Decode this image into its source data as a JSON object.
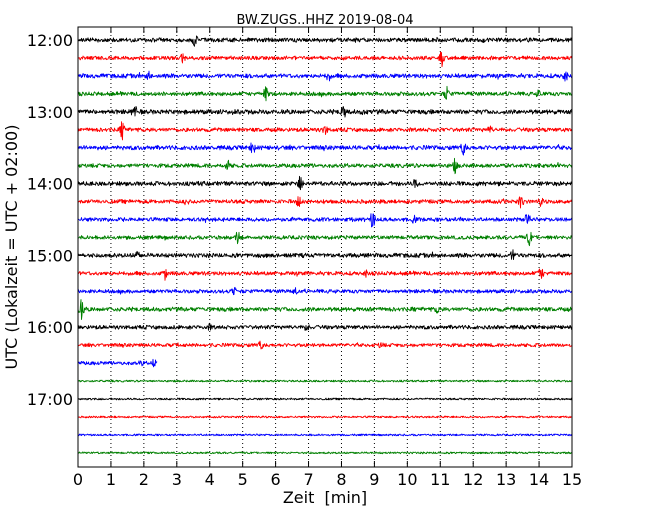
{
  "chart_data": {
    "type": "line",
    "title": "BW.ZUGS..HHZ 2019-08-04",
    "xlabel": "Zeit  [min]",
    "ylabel": "UTC (Lokalzeit = UTC + 02:00)",
    "xlim": [
      0,
      15
    ],
    "x_ticks": [
      0,
      1,
      2,
      3,
      4,
      5,
      6,
      7,
      8,
      9,
      10,
      11,
      12,
      13,
      14,
      15
    ],
    "x_tick_labels": [
      "0",
      "1",
      "2",
      "3",
      "4",
      "5",
      "6",
      "7",
      "8",
      "9",
      "10",
      "11",
      "12",
      "13",
      "14",
      "15"
    ],
    "y_tick_labels": [
      "12:00",
      "13:00",
      "14:00",
      "15:00",
      "16:00",
      "17:00"
    ],
    "y_tick_row_index": [
      0,
      4,
      8,
      12,
      16,
      20
    ],
    "grid": "vertical-dotted",
    "row_colors": [
      "#000000",
      "#ff0000",
      "#0000ff",
      "#008000"
    ],
    "traces": [
      {
        "start": "12:00",
        "color": "#000000",
        "end_min": 15,
        "activity": 0.55,
        "events": [
          {
            "t": 3.55,
            "amp": 0.9
          }
        ]
      },
      {
        "start": "12:15",
        "color": "#ff0000",
        "end_min": 15,
        "activity": 0.45,
        "events": [
          {
            "t": 3.2,
            "amp": 0.8
          },
          {
            "t": 11.05,
            "amp": 1.0
          }
        ]
      },
      {
        "start": "12:30",
        "color": "#0000ff",
        "end_min": 15,
        "activity": 0.6,
        "events": [
          {
            "t": 2.15,
            "amp": 0.5
          },
          {
            "t": 7.6,
            "amp": 0.6
          },
          {
            "t": 14.8,
            "amp": 0.7
          }
        ]
      },
      {
        "start": "12:45",
        "color": "#008000",
        "end_min": 15,
        "activity": 0.5,
        "events": [
          {
            "t": 5.7,
            "amp": 1.0
          },
          {
            "t": 11.2,
            "amp": 0.9
          },
          {
            "t": 14.0,
            "amp": 0.5
          }
        ]
      },
      {
        "start": "13:00",
        "color": "#000000",
        "end_min": 15,
        "activity": 0.65,
        "events": [
          {
            "t": 1.7,
            "amp": 1.0
          },
          {
            "t": 8.05,
            "amp": 1.0
          },
          {
            "t": 8.7,
            "amp": 0.4
          }
        ]
      },
      {
        "start": "13:15",
        "color": "#ff0000",
        "end_min": 15,
        "activity": 0.5,
        "events": [
          {
            "t": 1.35,
            "amp": 1.2
          },
          {
            "t": 7.5,
            "amp": 0.6
          },
          {
            "t": 12.5,
            "amp": 0.4
          }
        ]
      },
      {
        "start": "13:30",
        "color": "#0000ff",
        "end_min": 15,
        "activity": 0.6,
        "events": [
          {
            "t": 5.3,
            "amp": 0.8
          },
          {
            "t": 11.7,
            "amp": 1.0
          }
        ]
      },
      {
        "start": "13:45",
        "color": "#008000",
        "end_min": 15,
        "activity": 0.5,
        "events": [
          {
            "t": 4.55,
            "amp": 0.7
          },
          {
            "t": 11.45,
            "amp": 0.9
          }
        ]
      },
      {
        "start": "14:00",
        "color": "#000000",
        "end_min": 15,
        "activity": 0.6,
        "events": [
          {
            "t": 6.75,
            "amp": 1.1
          },
          {
            "t": 10.25,
            "amp": 0.6
          }
        ]
      },
      {
        "start": "14:15",
        "color": "#ff0000",
        "end_min": 15,
        "activity": 0.5,
        "events": [
          {
            "t": 3.3,
            "amp": 0.4
          },
          {
            "t": 6.7,
            "amp": 0.7
          },
          {
            "t": 13.45,
            "amp": 0.8
          },
          {
            "t": 14.05,
            "amp": 0.5
          }
        ]
      },
      {
        "start": "14:30",
        "color": "#0000ff",
        "end_min": 15,
        "activity": 0.5,
        "events": [
          {
            "t": 8.95,
            "amp": 1.2
          },
          {
            "t": 10.2,
            "amp": 0.4
          },
          {
            "t": 13.65,
            "amp": 0.9
          }
        ]
      },
      {
        "start": "14:45",
        "color": "#008000",
        "end_min": 15,
        "activity": 0.45,
        "events": [
          {
            "t": 4.85,
            "amp": 0.8
          },
          {
            "t": 13.7,
            "amp": 1.0
          }
        ]
      },
      {
        "start": "15:00",
        "color": "#000000",
        "end_min": 15,
        "activity": 0.6,
        "events": [
          {
            "t": 1.8,
            "amp": 0.5
          },
          {
            "t": 13.2,
            "amp": 0.6
          }
        ]
      },
      {
        "start": "15:15",
        "color": "#ff0000",
        "end_min": 15,
        "activity": 0.5,
        "events": [
          {
            "t": 2.65,
            "amp": 0.8
          },
          {
            "t": 8.75,
            "amp": 0.4
          },
          {
            "t": 14.05,
            "amp": 1.0
          }
        ]
      },
      {
        "start": "15:30",
        "color": "#0000ff",
        "end_min": 15,
        "activity": 0.45,
        "events": [
          {
            "t": 4.75,
            "amp": 0.6
          },
          {
            "t": 6.6,
            "amp": 0.4
          }
        ]
      },
      {
        "start": "15:45",
        "color": "#008000",
        "end_min": 15,
        "activity": 0.55,
        "events": [
          {
            "t": 0.1,
            "amp": 1.3
          },
          {
            "t": 10.9,
            "amp": 0.4
          }
        ]
      },
      {
        "start": "16:00",
        "color": "#000000",
        "end_min": 15,
        "activity": 0.5,
        "events": [
          {
            "t": 6.95,
            "amp": 0.5
          },
          {
            "t": 4.0,
            "amp": 0.3
          }
        ]
      },
      {
        "start": "16:15",
        "color": "#ff0000",
        "end_min": 15,
        "activity": 0.4,
        "events": [
          {
            "t": 5.55,
            "amp": 0.6
          },
          {
            "t": 9.2,
            "amp": 0.3
          }
        ]
      },
      {
        "start": "16:30",
        "color": "#0000ff",
        "end_min": 2.4,
        "activity": 0.4,
        "events": [
          {
            "t": 2.3,
            "amp": 0.5
          },
          {
            "t": 1.9,
            "amp": 0.3
          }
        ]
      },
      {
        "start": "16:45",
        "color": "#008000",
        "end_min": 15,
        "activity": 0,
        "events": []
      },
      {
        "start": "17:00",
        "color": "#000000",
        "end_min": 15,
        "activity": 0,
        "events": []
      },
      {
        "start": "17:15",
        "color": "#ff0000",
        "end_min": 15,
        "activity": 0,
        "events": []
      },
      {
        "start": "17:30",
        "color": "#0000ff",
        "end_min": 15,
        "activity": 0,
        "events": []
      },
      {
        "start": "17:45",
        "color": "#008000",
        "end_min": 15,
        "activity": 0,
        "events": []
      }
    ]
  }
}
